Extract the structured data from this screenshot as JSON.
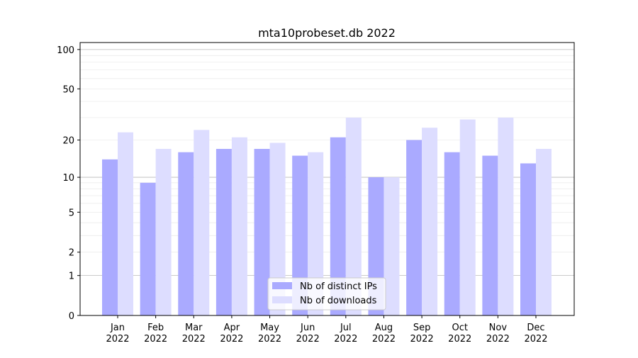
{
  "chart_data": {
    "type": "bar",
    "title": "mta10probeset.db 2022",
    "xlabel": "",
    "ylabel": "",
    "yscale": "log(1+y)",
    "ylim": [
      0,
      113
    ],
    "yticks": [
      0,
      1,
      2,
      5,
      10,
      20,
      50,
      100
    ],
    "ytick_labels": [
      "0",
      "1",
      "2",
      "5",
      "10",
      "20",
      "50",
      "100"
    ],
    "categories": [
      "Jan\n2022",
      "Feb\n2022",
      "Mar\n2022",
      "Apr\n2022",
      "May\n2022",
      "Jun\n2022",
      "Jul\n2022",
      "Aug\n2022",
      "Sep\n2022",
      "Oct\n2022",
      "Nov\n2022",
      "Dec\n2022"
    ],
    "series": [
      {
        "name": "Nb of distinct IPs",
        "color": "#aaaaff",
        "values": [
          14,
          9,
          16,
          17,
          17,
          15,
          21,
          10,
          20,
          16,
          15,
          13
        ]
      },
      {
        "name": "Nb of downloads",
        "color": "#ddddff",
        "values": [
          23,
          17,
          24,
          21,
          19,
          16,
          30,
          10,
          25,
          29,
          30,
          17
        ]
      }
    ],
    "grid": true,
    "legend": "bottom-center"
  }
}
